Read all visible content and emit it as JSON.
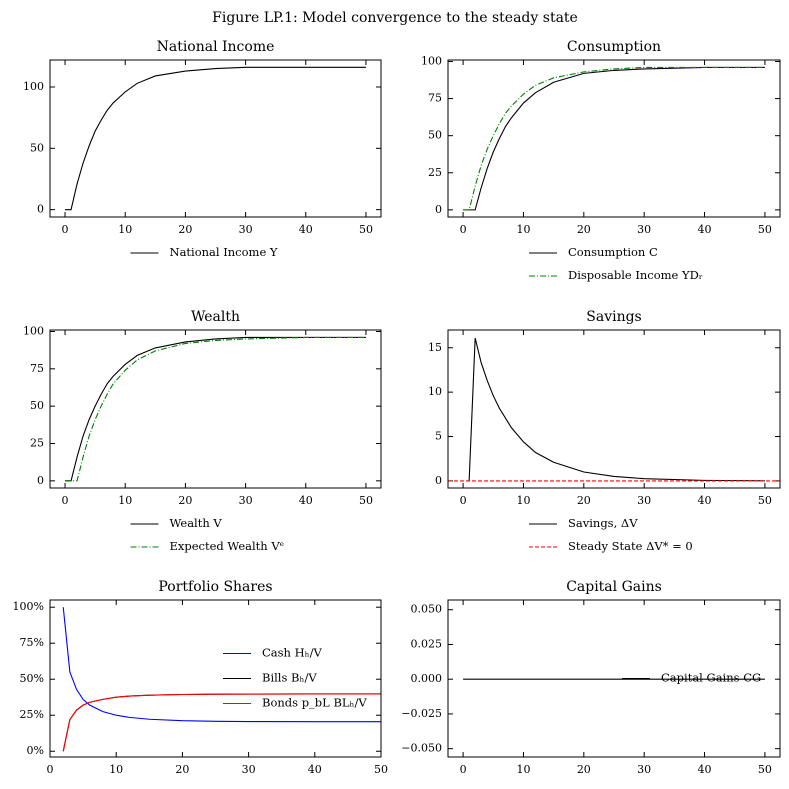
{
  "figure_title": "Figure LP.1: Model convergence to the steady state",
  "chart_data": [
    {
      "type": "line",
      "title": "National Income",
      "legend": "below",
      "x": [
        0,
        1,
        2,
        3,
        4,
        5,
        6,
        7,
        8,
        10,
        12,
        15,
        20,
        25,
        30,
        40,
        50
      ],
      "xlim": [
        -2.5,
        52.5
      ],
      "xticks": [
        0,
        10,
        20,
        30,
        40,
        50
      ],
      "ylim": [
        -6,
        122
      ],
      "yticks": [
        0,
        50,
        100
      ],
      "series": [
        {
          "name": "National Income Y",
          "color": "#000000",
          "linestyle": "solid",
          "values": [
            0,
            0,
            21,
            38,
            52,
            64,
            73,
            81,
            87,
            96,
            103,
            109,
            113,
            115,
            116,
            116,
            116
          ]
        }
      ]
    },
    {
      "type": "line",
      "title": "Consumption",
      "legend": "below",
      "x": [
        0,
        1,
        2,
        3,
        4,
        5,
        6,
        7,
        8,
        10,
        12,
        15,
        20,
        25,
        30,
        40,
        50
      ],
      "xlim": [
        -2.5,
        52.5
      ],
      "xticks": [
        0,
        10,
        20,
        30,
        40,
        50
      ],
      "ylim": [
        -4.8,
        101
      ],
      "yticks": [
        0,
        25,
        50,
        75,
        100
      ],
      "series": [
        {
          "name": "Consumption C",
          "color": "#000000",
          "linestyle": "solid",
          "values": [
            0,
            0,
            0,
            15,
            28,
            39,
            48,
            56,
            62,
            72,
            79,
            86,
            92,
            94,
            95,
            96,
            96
          ]
        },
        {
          "name": "Disposable Income YDᵣ",
          "color": "#008000",
          "linestyle": "dashdot",
          "values": [
            0,
            0,
            16,
            30,
            41,
            50,
            58,
            65,
            70,
            78,
            84,
            89,
            93,
            95,
            96,
            96,
            96
          ]
        }
      ]
    },
    {
      "type": "line",
      "title": "Wealth",
      "legend": "below",
      "x": [
        0,
        1,
        2,
        3,
        4,
        5,
        6,
        7,
        8,
        10,
        12,
        15,
        20,
        25,
        30,
        40,
        50
      ],
      "xlim": [
        -2.5,
        52.5
      ],
      "xticks": [
        0,
        10,
        20,
        30,
        40,
        50
      ],
      "ylim": [
        -4.8,
        101
      ],
      "yticks": [
        0,
        25,
        50,
        75,
        100
      ],
      "series": [
        {
          "name": "Wealth V",
          "color": "#000000",
          "linestyle": "solid",
          "values": [
            0,
            0,
            16,
            30,
            41,
            50,
            58,
            65,
            70,
            78,
            84,
            89,
            93,
            95,
            96,
            96,
            96
          ]
        },
        {
          "name": "Expected Wealth Vᵉ",
          "color": "#008000",
          "linestyle": "dashdot",
          "values": [
            0,
            0,
            0,
            16,
            30,
            41,
            50,
            58,
            65,
            74,
            81,
            87,
            92,
            94,
            95,
            96,
            96
          ]
        }
      ]
    },
    {
      "type": "line",
      "title": "Savings",
      "legend": "below",
      "x": [
        1,
        2,
        3,
        4,
        5,
        6,
        8,
        10,
        12,
        15,
        20,
        25,
        30,
        40,
        50
      ],
      "xlim": [
        -2.5,
        52.5
      ],
      "xticks": [
        0,
        10,
        20,
        30,
        40,
        50
      ],
      "ylim": [
        -0.8,
        17
      ],
      "yticks": [
        0,
        5,
        10,
        15
      ],
      "series": [
        {
          "name": "Savings, ΔV",
          "color": "#000000",
          "linestyle": "solid",
          "values": [
            0,
            16.1,
            13.3,
            11.3,
            9.6,
            8.2,
            6,
            4.4,
            3.2,
            2.1,
            1.0,
            0.5,
            0.25,
            0.06,
            0.01
          ]
        },
        {
          "name": "Steady State ΔV* = 0",
          "color": "#ff0000",
          "linestyle": "dashed",
          "hline": 0
        }
      ]
    },
    {
      "type": "line",
      "title": "Portfolio Shares",
      "legend": "center right",
      "x": [
        2,
        3,
        4,
        5,
        6,
        8,
        10,
        12,
        15,
        20,
        25,
        30,
        40,
        50
      ],
      "xlim": [
        0,
        50
      ],
      "xticks": [
        0,
        10,
        20,
        30,
        40,
        50
      ],
      "ylim": [
        -0.04,
        1.05
      ],
      "yticks": [
        {
          "value": 0,
          "label": "0%"
        },
        {
          "value": 0.25,
          "label": "25%"
        },
        {
          "value": 0.5,
          "label": "50%"
        },
        {
          "value": 0.75,
          "label": "75%"
        },
        {
          "value": 1,
          "label": "100%"
        }
      ],
      "series": [
        {
          "name": "Cash Hₕ/V",
          "color": "#0000ff",
          "linestyle": "solid",
          "values": [
            1,
            0.55,
            0.43,
            0.36,
            0.32,
            0.275,
            0.25,
            0.235,
            0.222,
            0.212,
            0.208,
            0.206,
            0.205,
            0.205
          ]
        },
        {
          "name": "Bills Bₕ/V",
          "color": "#000000",
          "linestyle": "solid",
          "values": [
            0,
            0.22,
            0.285,
            0.32,
            0.34,
            0.36,
            0.375,
            0.383,
            0.389,
            0.394,
            0.396,
            0.397,
            0.398,
            0.398
          ]
        },
        {
          "name": "Bonds p_bL BLₕ/V",
          "color": "#ff0000",
          "linestyle": "solid",
          "values": [
            0,
            0.22,
            0.285,
            0.32,
            0.34,
            0.36,
            0.375,
            0.383,
            0.389,
            0.394,
            0.396,
            0.397,
            0.398,
            0.398
          ]
        }
      ]
    },
    {
      "type": "line",
      "title": "Capital Gains",
      "legend": "center right",
      "x": [
        0,
        50
      ],
      "xlim": [
        -2.5,
        52.5
      ],
      "xticks": [
        0,
        10,
        20,
        30,
        40,
        50
      ],
      "ylim": [
        -0.056,
        0.057
      ],
      "yticks": [
        {
          "value": -0.05,
          "label": "−0.050"
        },
        {
          "value": -0.025,
          "label": "−0.025"
        },
        {
          "value": 0,
          "label": "0.000"
        },
        {
          "value": 0.025,
          "label": "0.025"
        },
        {
          "value": 0.05,
          "label": "0.050"
        }
      ],
      "series": [
        {
          "name": "Capital Gains CG",
          "color": "#000000",
          "linestyle": "solid",
          "values": [
            0,
            0
          ]
        }
      ]
    }
  ]
}
